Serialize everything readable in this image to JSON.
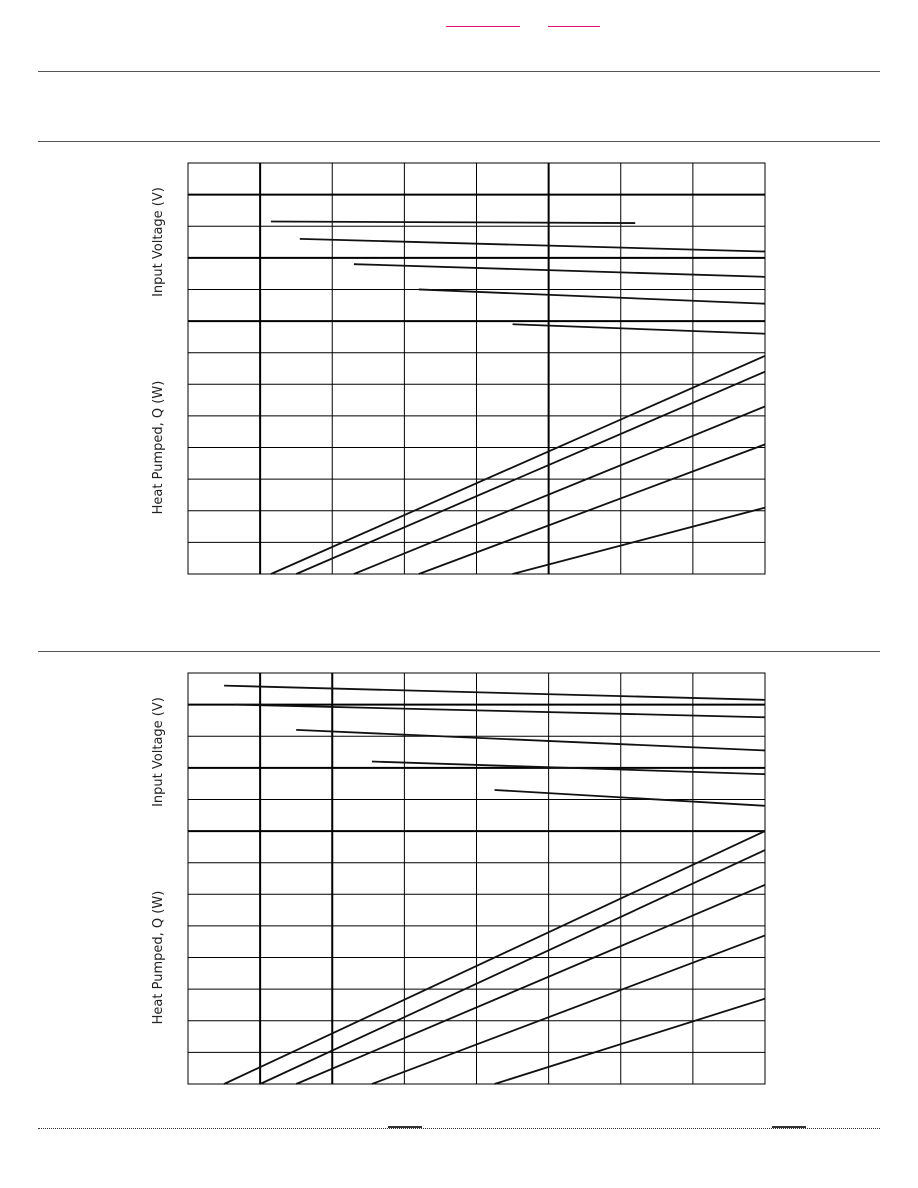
{
  "chart_data": [
    {
      "type": "line",
      "grid": true,
      "ylabel_top": "Input Voltage (V)",
      "ylabel_bottom": "Heat Pumped, Q (W)",
      "x_divisions": 8,
      "grid_rows": 13,
      "voltage_rows": 5,
      "heavy_x_index": [
        1,
        5
      ],
      "heavy_y_index": [
        1,
        3,
        5
      ],
      "voltage_series": [
        [
          [
            1.15,
            1.85
          ],
          [
            6.2,
            1.9
          ]
        ],
        [
          [
            1.55,
            2.4
          ],
          [
            8,
            2.8
          ]
        ],
        [
          [
            2.3,
            3.2
          ],
          [
            8,
            3.6
          ]
        ],
        [
          [
            3.2,
            4.0
          ],
          [
            8,
            4.45
          ]
        ],
        [
          [
            4.5,
            5.1
          ],
          [
            8,
            5.4
          ]
        ]
      ],
      "heat_series": [
        [
          [
            1.15,
            0
          ],
          [
            8,
            6.9
          ]
        ],
        [
          [
            1.5,
            0
          ],
          [
            8,
            6.4
          ]
        ],
        [
          [
            2.3,
            0
          ],
          [
            8,
            5.3
          ]
        ],
        [
          [
            3.2,
            0
          ],
          [
            8,
            4.1
          ]
        ],
        [
          [
            4.5,
            0
          ],
          [
            8,
            2.1
          ]
        ]
      ]
    },
    {
      "type": "line",
      "grid": true,
      "ylabel_top": "Input Voltage (V)",
      "ylabel_bottom": "Heat Pumped, Q (W)",
      "x_divisions": 8,
      "grid_rows": 13,
      "voltage_rows": 5,
      "heavy_x_index": [
        1,
        2
      ],
      "heavy_y_index": [
        1,
        3,
        5
      ],
      "voltage_series": [
        [
          [
            0.5,
            0.4
          ],
          [
            8,
            0.85
          ]
        ],
        [
          [
            0.65,
            1.0
          ],
          [
            8,
            1.4
          ]
        ],
        [
          [
            1.5,
            1.8
          ],
          [
            8,
            2.45
          ]
        ],
        [
          [
            2.55,
            2.8
          ],
          [
            8,
            3.2
          ]
        ],
        [
          [
            4.25,
            3.7
          ],
          [
            8,
            4.2
          ]
        ]
      ],
      "heat_series": [
        [
          [
            0.5,
            0
          ],
          [
            8,
            8.0
          ]
        ],
        [
          [
            1.0,
            0
          ],
          [
            8,
            7.4
          ]
        ],
        [
          [
            1.5,
            0
          ],
          [
            8,
            6.3
          ]
        ],
        [
          [
            2.55,
            0
          ],
          [
            8,
            4.7
          ]
        ],
        [
          [
            4.25,
            0
          ],
          [
            8,
            2.7
          ]
        ]
      ]
    }
  ]
}
